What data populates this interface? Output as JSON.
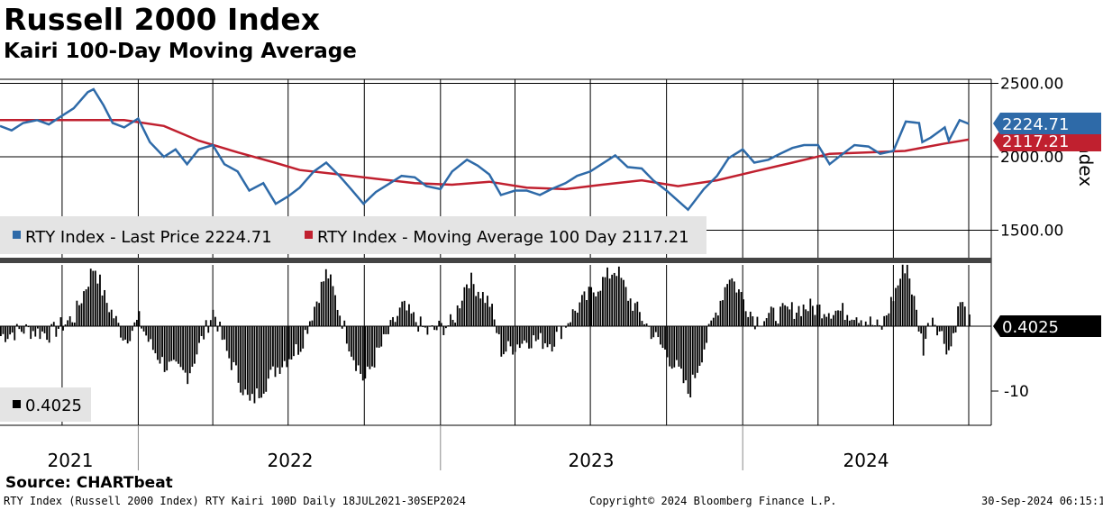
{
  "header": {
    "title": "Russell 2000 Index",
    "subtitle": "Kairi 100-Day Moving Average"
  },
  "source_label": "Source: CHARTbeat",
  "footer": {
    "left": "RTY Index (Russell 2000 Index) RTY Kairi 100D  Daily 18JUL2021-30SEP2024",
    "center": "Copyright© 2024 Bloomberg Finance L.P.",
    "right": "30-Sep-2024 06:15:14"
  },
  "colors": {
    "price": "#2e6aa8",
    "moving_average": "#c0202f",
    "kairi": "#000000",
    "legend_bg": "#e4e4e4",
    "price_tag": "#2e6aa8",
    "ma_tag": "#c0202f",
    "kairi_tag": "#000000"
  },
  "chart_data": [
    {
      "type": "line",
      "panel": "upper",
      "ylabel": "Index",
      "ylim": [
        1300,
        2600
      ],
      "y_ticks": [
        1500,
        2000,
        2500
      ],
      "y_tick_labels": [
        "1500.00",
        "2000.00",
        "2500.00"
      ],
      "x_range": [
        "2021-07-18",
        "2024-09-30"
      ],
      "x_year_labels": [
        "2021",
        "2022",
        "2023",
        "2024"
      ],
      "x_year_dividers": [
        "2022-01-01",
        "2023-01-01",
        "2024-01-01"
      ],
      "x_gridlines": [
        "2021-10-01",
        "2022-04-01",
        "2022-07-01",
        "2022-10-01",
        "2023-04-01",
        "2023-07-01",
        "2023-10-01",
        "2024-04-01",
        "2024-07-01",
        "2024-09-30"
      ],
      "grid": true,
      "legend": {
        "placement": "bottom-left",
        "entries": [
          "RTY Index - Last Price 2224.71",
          "RTY Index - Moving Average 100 Day 2117.21"
        ]
      },
      "last_value_tags": [
        "2224.71",
        "2117.21"
      ],
      "series": [
        {
          "name": "RTY Index - Last Price",
          "x": [
            "2021-07-18",
            "2021-08-01",
            "2021-08-15",
            "2021-09-01",
            "2021-09-15",
            "2021-10-01",
            "2021-10-15",
            "2021-11-01",
            "2021-11-08",
            "2021-11-20",
            "2021-12-01",
            "2021-12-15",
            "2022-01-01",
            "2022-01-15",
            "2022-02-01",
            "2022-02-15",
            "2022-03-01",
            "2022-03-15",
            "2022-04-01",
            "2022-04-15",
            "2022-05-01",
            "2022-05-15",
            "2022-06-01",
            "2022-06-16",
            "2022-07-01",
            "2022-07-15",
            "2022-08-01",
            "2022-08-16",
            "2022-09-01",
            "2022-09-15",
            "2022-09-30",
            "2022-10-15",
            "2022-11-01",
            "2022-11-15",
            "2022-12-01",
            "2022-12-15",
            "2023-01-01",
            "2023-01-15",
            "2023-02-02",
            "2023-02-15",
            "2023-03-01",
            "2023-03-15",
            "2023-04-01",
            "2023-04-15",
            "2023-05-01",
            "2023-05-15",
            "2023-06-01",
            "2023-06-15",
            "2023-07-01",
            "2023-07-31",
            "2023-08-15",
            "2023-09-01",
            "2023-09-15",
            "2023-10-01",
            "2023-10-15",
            "2023-10-27",
            "2023-11-15",
            "2023-12-01",
            "2023-12-15",
            "2024-01-01",
            "2024-01-15",
            "2024-02-01",
            "2024-02-15",
            "2024-03-01",
            "2024-03-15",
            "2024-04-01",
            "2024-04-15",
            "2024-05-01",
            "2024-05-15",
            "2024-06-01",
            "2024-06-15",
            "2024-07-01",
            "2024-07-16",
            "2024-08-01",
            "2024-08-05",
            "2024-08-15",
            "2024-09-01",
            "2024-09-06",
            "2024-09-19",
            "2024-09-30"
          ],
          "values": [
            2210,
            2180,
            2230,
            2250,
            2220,
            2280,
            2330,
            2440,
            2460,
            2350,
            2230,
            2200,
            2260,
            2100,
            2000,
            2050,
            1950,
            2050,
            2080,
            1950,
            1900,
            1770,
            1820,
            1680,
            1730,
            1790,
            1900,
            1960,
            1870,
            1780,
            1680,
            1760,
            1820,
            1870,
            1860,
            1800,
            1780,
            1900,
            1980,
            1940,
            1880,
            1740,
            1770,
            1770,
            1740,
            1780,
            1820,
            1870,
            1900,
            2010,
            1930,
            1920,
            1840,
            1770,
            1700,
            1640,
            1780,
            1870,
            1990,
            2050,
            1960,
            1980,
            2020,
            2060,
            2080,
            2080,
            1950,
            2020,
            2080,
            2070,
            2020,
            2040,
            2240,
            2230,
            2100,
            2130,
            2200,
            2110,
            2250,
            2224.71
          ]
        },
        {
          "name": "RTY Index - Moving Average 100 Day",
          "x": [
            "2021-07-18",
            "2021-09-01",
            "2021-11-01",
            "2021-12-15",
            "2022-02-01",
            "2022-03-15",
            "2022-05-01",
            "2022-06-15",
            "2022-07-15",
            "2022-09-01",
            "2022-10-15",
            "2022-12-01",
            "2023-01-15",
            "2023-03-01",
            "2023-04-15",
            "2023-06-01",
            "2023-07-15",
            "2023-09-01",
            "2023-10-15",
            "2023-12-01",
            "2024-01-15",
            "2024-03-01",
            "2024-04-15",
            "2024-06-01",
            "2024-07-15",
            "2024-09-01",
            "2024-09-30"
          ],
          "values": [
            2250,
            2250,
            2250,
            2250,
            2210,
            2110,
            2030,
            1960,
            1910,
            1880,
            1850,
            1820,
            1810,
            1830,
            1790,
            1780,
            1810,
            1840,
            1800,
            1840,
            1900,
            1960,
            2020,
            2030,
            2040,
            2090,
            2117.21
          ]
        }
      ]
    },
    {
      "type": "bar",
      "panel": "lower",
      "ylim": [
        -13,
        20
      ],
      "y_ticks": [
        -10
      ],
      "y_tick_labels": [
        "-10"
      ],
      "zero_line": true,
      "legend": {
        "placement": "bottom-left",
        "entries": [
          "0.4025"
        ]
      },
      "last_value_tags": [
        "0.4025"
      ],
      "series": [
        {
          "name": "RTY Kairi 100D",
          "x": [
            "2021-07-18",
            "2021-08-15",
            "2021-09-15",
            "2021-10-15",
            "2021-11-08",
            "2021-11-20",
            "2021-12-15",
            "2022-01-01",
            "2022-01-15",
            "2022-02-01",
            "2022-03-01",
            "2022-03-15",
            "2022-04-01",
            "2022-04-15",
            "2022-05-15",
            "2022-06-16",
            "2022-07-15",
            "2022-08-16",
            "2022-09-15",
            "2022-09-30",
            "2022-10-15",
            "2022-11-15",
            "2022-12-15",
            "2023-01-15",
            "2023-02-02",
            "2023-03-01",
            "2023-03-15",
            "2023-04-15",
            "2023-05-15",
            "2023-06-15",
            "2023-07-31",
            "2023-08-15",
            "2023-09-15",
            "2023-10-15",
            "2023-10-27",
            "2023-11-15",
            "2023-12-15",
            "2024-01-15",
            "2024-02-15",
            "2024-03-15",
            "2024-04-15",
            "2024-05-15",
            "2024-06-15",
            "2024-07-16",
            "2024-08-05",
            "2024-08-15",
            "2024-09-06",
            "2024-09-19",
            "2024-09-30"
          ],
          "values": [
            -1.5,
            -0.5,
            -1.2,
            1.5,
            9.5,
            4.5,
            -2.0,
            1.0,
            -3.0,
            -6.0,
            -7.5,
            -3.0,
            2.5,
            -3.5,
            -12.0,
            -6.5,
            -3.0,
            8.5,
            -4.0,
            -8.5,
            -4.5,
            3.0,
            -1.0,
            0.5,
            7.5,
            3.5,
            -4.0,
            -2.0,
            -2.5,
            3.0,
            9.0,
            4.5,
            -1.5,
            -7.0,
            -10.5,
            -3.0,
            8.0,
            1.0,
            2.0,
            3.0,
            2.5,
            2.0,
            -0.5,
            10.0,
            -3.5,
            2.0,
            -4.0,
            4.0,
            0.4025
          ]
        }
      ]
    }
  ]
}
